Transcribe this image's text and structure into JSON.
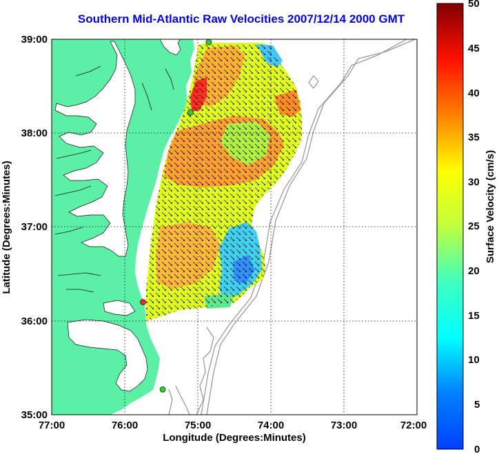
{
  "title": "Southern Mid-Atlantic Raw Velocities 2007/12/14 2000 GMT",
  "xlabel": "Longitude (Degrees:Minutes)",
  "ylabel": "Latitude (Degrees:Minutes)",
  "colorbar_label": "Surface Velocity (cm/s)",
  "x_ticks": [
    "77:00",
    "76:00",
    "75:00",
    "74:00",
    "73:00",
    "72:00"
  ],
  "y_ticks": [
    "39:00",
    "38:00",
    "37:00",
    "36:00",
    "35:00"
  ],
  "colorbar_ticks": [
    "50",
    "45",
    "40",
    "35",
    "30",
    "25",
    "20",
    "15",
    "10",
    "5",
    "0"
  ],
  "chart_data": {
    "type": "heatmap",
    "xlim": [
      -77,
      -72
    ],
    "ylim": [
      35,
      39
    ],
    "clim": [
      0,
      50
    ],
    "colormap": "jet",
    "land_color": "#5cf0a6",
    "grid": "dotted",
    "stations": [
      {
        "lon": -74.85,
        "lat": 38.97,
        "color": "#33cc33"
      },
      {
        "lon": -75.1,
        "lat": 38.22,
        "color": "#33cc33"
      },
      {
        "lon": -75.75,
        "lat": 36.2,
        "color": "#ff2222"
      },
      {
        "lon": -75.48,
        "lat": 35.27,
        "color": "#33cc33"
      }
    ]
  }
}
